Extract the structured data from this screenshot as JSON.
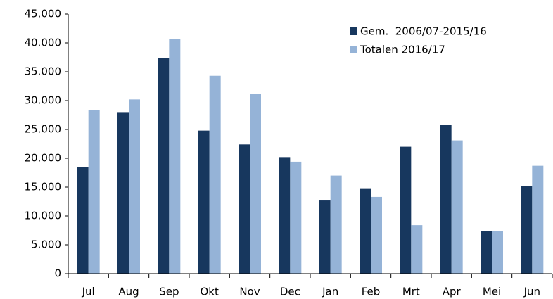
{
  "chart_data": {
    "type": "bar",
    "categories": [
      "Jul",
      "Aug",
      "Sep",
      "Okt",
      "Nov",
      "Dec",
      "Jan",
      "Feb",
      "Mrt",
      "Apr",
      "Mei",
      "Jun"
    ],
    "series": [
      {
        "name": "Gem.  2006/07-2015/16",
        "color": "#17375e",
        "values": [
          18500,
          28000,
          37400,
          24800,
          22400,
          20200,
          12800,
          14800,
          22000,
          25800,
          7400,
          15200
        ]
      },
      {
        "name": "Totalen 2016/17",
        "color": "#95b3d7",
        "values": [
          28300,
          30200,
          40700,
          34300,
          31200,
          19400,
          17000,
          13300,
          8400,
          23100,
          7400,
          18700
        ]
      }
    ],
    "ylim": [
      0,
      45000
    ],
    "yticks": [
      0,
      {
        "value": 5000,
        "label": "5.000"
      },
      {
        "value": 10000,
        "label": "10.000"
      },
      {
        "value": 15000,
        "label": "15.000"
      },
      {
        "value": 20000,
        "label": "20.000"
      },
      {
        "value": 25000,
        "label": "25.000"
      },
      {
        "value": 30000,
        "label": "30.000"
      },
      {
        "value": 35000,
        "label": "35.000"
      },
      {
        "value": 40000,
        "label": "40.000"
      },
      {
        "value": 45000,
        "label": "45.000"
      }
    ],
    "grid": false,
    "legend": "upper right"
  }
}
